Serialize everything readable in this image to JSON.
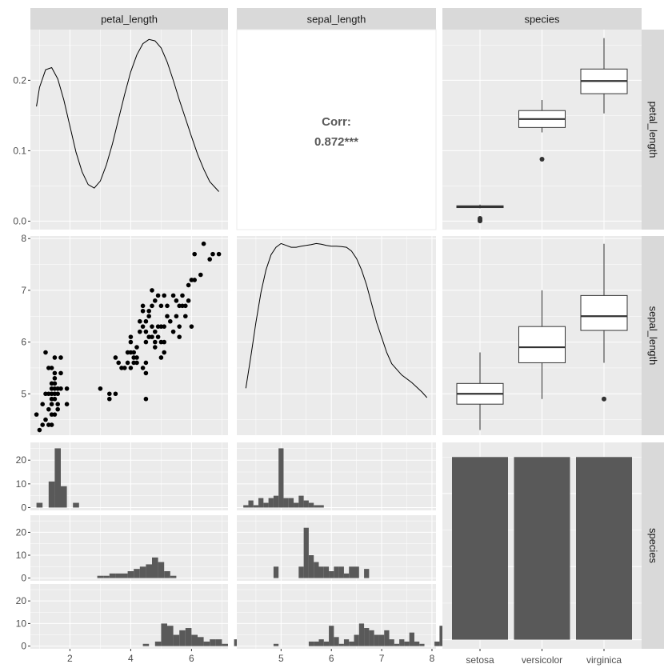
{
  "chart_data": {
    "type": "scatter",
    "variables": [
      "petal_length",
      "sepal_length",
      "species"
    ],
    "species_levels": [
      "setosa",
      "versicolor",
      "virginica"
    ],
    "colors": {
      "panel_bg": "#ebebeb",
      "grid": "#ffffff",
      "strip_bg": "#d9d9d9",
      "ink": "#000000",
      "bar": "#595959",
      "corr_text": "#595959"
    },
    "panels": {
      "petal_length_density": {
        "type": "line",
        "xlim": [
          0.7,
          7.2
        ],
        "ylim": [
          -0.012,
          0.272
        ],
        "yticks": [
          0.0,
          0.1,
          0.2
        ],
        "ytick_labels": [
          "0.0",
          "0.1",
          "0.2"
        ],
        "x": [
          0.9,
          1.0,
          1.2,
          1.4,
          1.6,
          1.8,
          2.0,
          2.2,
          2.4,
          2.6,
          2.8,
          3.0,
          3.2,
          3.4,
          3.6,
          3.8,
          4.0,
          4.2,
          4.4,
          4.6,
          4.8,
          5.0,
          5.2,
          5.4,
          5.6,
          5.8,
          6.0,
          6.2,
          6.4,
          6.6,
          6.9
        ],
        "y": [
          0.163,
          0.19,
          0.215,
          0.218,
          0.202,
          0.172,
          0.135,
          0.098,
          0.07,
          0.052,
          0.047,
          0.057,
          0.08,
          0.11,
          0.145,
          0.18,
          0.212,
          0.236,
          0.252,
          0.258,
          0.256,
          0.246,
          0.226,
          0.2,
          0.172,
          0.146,
          0.12,
          0.095,
          0.074,
          0.056,
          0.042
        ]
      },
      "correlation": {
        "label": "Corr:",
        "value": "0.872***"
      },
      "petal_length_by_species_box": {
        "type": "box",
        "ylim": [
          -0.012,
          0.272
        ],
        "boxes": [
          {
            "species": "setosa",
            "min": 0.0183,
            "q1": 0.0192,
            "median": 0.0205,
            "q3": 0.0218,
            "max": 0.0235,
            "outliers": [
              0.0016,
              0.0004,
              0.0039
            ]
          },
          {
            "species": "versicolor",
            "min": 0.126,
            "q1": 0.133,
            "median": 0.145,
            "q3": 0.157,
            "max": 0.172,
            "outliers": [
              0.088
            ]
          },
          {
            "species": "virginica",
            "min": 0.153,
            "q1": 0.181,
            "median": 0.199,
            "q3": 0.216,
            "max": 0.26,
            "outliers": []
          }
        ]
      },
      "scatter_petal_vs_sepal": {
        "type": "scatter",
        "xlim": [
          0.7,
          7.2
        ],
        "ylim": [
          4.2,
          8.05
        ],
        "yticks": [
          5,
          6,
          7,
          8
        ],
        "ytick_labels": [
          "5",
          "6",
          "7",
          "8"
        ],
        "points": [
          [
            0.9,
            4.6
          ],
          [
            1.0,
            4.3
          ],
          [
            1.1,
            4.4
          ],
          [
            1.1,
            4.8
          ],
          [
            1.2,
            4.5
          ],
          [
            1.2,
            5.0
          ],
          [
            1.2,
            5.8
          ],
          [
            1.3,
            4.4
          ],
          [
            1.3,
            4.7
          ],
          [
            1.3,
            5.0
          ],
          [
            1.3,
            5.5
          ],
          [
            1.4,
            4.4
          ],
          [
            1.4,
            4.6
          ],
          [
            1.4,
            4.8
          ],
          [
            1.4,
            4.9
          ],
          [
            1.4,
            5.0
          ],
          [
            1.4,
            5.1
          ],
          [
            1.4,
            5.2
          ],
          [
            1.4,
            5.5
          ],
          [
            1.5,
            4.6
          ],
          [
            1.5,
            4.9
          ],
          [
            1.5,
            5.0
          ],
          [
            1.5,
            5.1
          ],
          [
            1.5,
            5.2
          ],
          [
            1.5,
            5.3
          ],
          [
            1.5,
            5.4
          ],
          [
            1.5,
            5.7
          ],
          [
            1.6,
            4.7
          ],
          [
            1.6,
            4.8
          ],
          [
            1.6,
            5.0
          ],
          [
            1.6,
            5.1
          ],
          [
            1.7,
            5.1
          ],
          [
            1.7,
            5.4
          ],
          [
            1.7,
            5.7
          ],
          [
            1.9,
            4.8
          ],
          [
            1.9,
            5.1
          ],
          [
            3.0,
            5.1
          ],
          [
            3.3,
            4.9
          ],
          [
            3.3,
            5.0
          ],
          [
            3.5,
            5.0
          ],
          [
            3.5,
            5.7
          ],
          [
            3.6,
            5.6
          ],
          [
            3.7,
            5.5
          ],
          [
            3.8,
            5.5
          ],
          [
            3.9,
            5.6
          ],
          [
            3.9,
            5.8
          ],
          [
            4.0,
            5.5
          ],
          [
            4.0,
            5.8
          ],
          [
            4.0,
            6.0
          ],
          [
            4.0,
            6.1
          ],
          [
            4.1,
            5.6
          ],
          [
            4.1,
            5.7
          ],
          [
            4.1,
            5.8
          ],
          [
            4.2,
            5.6
          ],
          [
            4.2,
            5.7
          ],
          [
            4.2,
            5.9
          ],
          [
            4.3,
            6.2
          ],
          [
            4.3,
            6.4
          ],
          [
            4.4,
            5.5
          ],
          [
            4.4,
            6.3
          ],
          [
            4.4,
            6.6
          ],
          [
            4.4,
            6.7
          ],
          [
            4.5,
            4.9
          ],
          [
            4.5,
            5.4
          ],
          [
            4.5,
            5.6
          ],
          [
            4.5,
            6.0
          ],
          [
            4.5,
            6.2
          ],
          [
            4.5,
            6.4
          ],
          [
            4.6,
            6.1
          ],
          [
            4.6,
            6.5
          ],
          [
            4.6,
            6.6
          ],
          [
            4.7,
            6.1
          ],
          [
            4.7,
            6.3
          ],
          [
            4.7,
            6.7
          ],
          [
            4.7,
            7.0
          ],
          [
            4.8,
            5.9
          ],
          [
            4.8,
            6.0
          ],
          [
            4.8,
            6.2
          ],
          [
            4.8,
            6.8
          ],
          [
            4.9,
            6.1
          ],
          [
            4.9,
            6.3
          ],
          [
            4.9,
            6.9
          ],
          [
            5.0,
            5.7
          ],
          [
            5.0,
            6.0
          ],
          [
            5.0,
            6.3
          ],
          [
            5.0,
            6.7
          ],
          [
            5.1,
            5.8
          ],
          [
            5.1,
            6.0
          ],
          [
            5.1,
            6.3
          ],
          [
            5.1,
            6.9
          ],
          [
            5.2,
            6.5
          ],
          [
            5.2,
            6.7
          ],
          [
            5.3,
            6.4
          ],
          [
            5.4,
            6.2
          ],
          [
            5.4,
            6.9
          ],
          [
            5.5,
            6.5
          ],
          [
            5.5,
            6.8
          ],
          [
            5.6,
            6.1
          ],
          [
            5.6,
            6.3
          ],
          [
            5.6,
            6.7
          ],
          [
            5.7,
            6.7
          ],
          [
            5.7,
            6.9
          ],
          [
            5.8,
            6.5
          ],
          [
            5.8,
            6.7
          ],
          [
            5.9,
            6.8
          ],
          [
            5.9,
            7.1
          ],
          [
            6.0,
            6.3
          ],
          [
            6.0,
            7.2
          ],
          [
            6.1,
            7.2
          ],
          [
            6.1,
            7.7
          ],
          [
            6.3,
            7.3
          ],
          [
            6.4,
            7.9
          ],
          [
            6.6,
            7.6
          ],
          [
            6.7,
            7.7
          ],
          [
            6.9,
            7.7
          ]
        ]
      },
      "sepal_length_density": {
        "type": "line",
        "xlim": [
          4.12,
          8.08
        ],
        "x": [
          4.3,
          4.4,
          4.5,
          4.6,
          4.7,
          4.8,
          4.9,
          5.0,
          5.1,
          5.2,
          5.3,
          5.4,
          5.5,
          5.6,
          5.7,
          5.8,
          5.9,
          6.0,
          6.1,
          6.2,
          6.3,
          6.4,
          6.5,
          6.6,
          6.7,
          6.8,
          6.9,
          7.0,
          7.1,
          7.2,
          7.4,
          7.6,
          7.8,
          7.9
        ],
        "y": [
          0.125,
          0.21,
          0.3,
          0.38,
          0.44,
          0.48,
          0.5,
          0.51,
          0.505,
          0.5,
          0.5,
          0.503,
          0.505,
          0.507,
          0.51,
          0.508,
          0.505,
          0.503,
          0.503,
          0.502,
          0.5,
          0.49,
          0.47,
          0.44,
          0.4,
          0.35,
          0.3,
          0.26,
          0.22,
          0.19,
          0.16,
          0.14,
          0.115,
          0.1
        ],
        "ylim": [
          0.0,
          0.53
        ]
      },
      "sepal_length_by_species_box": {
        "type": "box",
        "ylim": [
          4.2,
          8.05
        ],
        "boxes": [
          {
            "species": "setosa",
            "min": 4.3,
            "q1": 4.8,
            "median": 5.0,
            "q3": 5.2,
            "max": 5.8,
            "outliers": []
          },
          {
            "species": "versicolor",
            "min": 4.9,
            "q1": 5.6,
            "median": 5.9,
            "q3": 6.3,
            "max": 7.0,
            "outliers": []
          },
          {
            "species": "virginica",
            "min": 5.6,
            "q1": 6.225,
            "median": 6.5,
            "q3": 6.9,
            "max": 7.9,
            "outliers": [
              4.9
            ]
          }
        ]
      },
      "petal_length_histograms": {
        "type": "bar",
        "xlim": [
          0.7,
          7.2
        ],
        "xticks": [
          2,
          4,
          6
        ],
        "xtick_labels": [
          "2",
          "4",
          "6"
        ],
        "yticks": [
          0,
          10,
          20
        ],
        "ytick_labels": [
          "0",
          "10",
          "20"
        ],
        "ylim": [
          -1.2,
          27.5
        ],
        "bin_start": 0.1,
        "bin_width": 0.2,
        "facets": [
          {
            "species": "setosa",
            "counts": [
              0,
              0,
              0,
              0,
              2,
              7,
              25,
              11,
              2,
              0
            ]
          },
          {
            "species": "versicolor",
            "first_bin_center": 3.0,
            "counts": [
              1,
              1,
              2,
              2,
              2,
              3,
              4,
              5,
              6,
              9,
              7,
              3,
              1
            ]
          },
          {
            "species": "virginica",
            "first_bin_center": 4.5,
            "counts": [
              1,
              0,
              2,
              10,
              9,
              5,
              7,
              8,
              5,
              4,
              2,
              3,
              3,
              1,
              0,
              3,
              1
            ]
          }
        ]
      },
      "sepal_length_histograms": {
        "type": "bar",
        "xlim": [
          4.12,
          8.08
        ],
        "xticks": [
          5,
          6,
          7,
          8
        ],
        "xtick_labels": [
          "5",
          "6",
          "7",
          "8"
        ],
        "ylim": [
          -1.2,
          27.5
        ],
        "bin_width": 0.1,
        "facets": [
          {
            "species": "setosa",
            "first_bin_center": 4.3,
            "counts": [
              1,
              3,
              1,
              4,
              2,
              4,
              5,
              25,
              4,
              4,
              2,
              5,
              3,
              2,
              1,
              1
            ]
          },
          {
            "species": "versicolor",
            "first_bin_center": 4.9,
            "counts": [
              5,
              0,
              0,
              0,
              0,
              5,
              22,
              10,
              7,
              5,
              5,
              3,
              5,
              5,
              2,
              5,
              5,
              0,
              4
            ]
          },
          {
            "species": "virginica",
            "first_bin_center": 4.9,
            "counts": [
              1,
              0,
              0,
              0,
              0,
              0,
              0,
              2,
              2,
              3,
              2,
              9,
              4,
              1,
              3,
              2,
              5,
              10,
              8,
              7,
              5,
              5,
              7,
              3,
              1,
              3,
              2,
              6,
              2,
              1,
              0,
              0,
              2,
              9,
              0,
              0,
              0,
              3,
              0,
              1,
              0,
              0,
              5,
              0
            ]
          }
        ]
      },
      "species_bar": {
        "type": "bar",
        "categories": [
          "setosa",
          "versicolor",
          "virginica"
        ],
        "values": [
          50,
          50,
          50
        ],
        "ylim": [
          -2.5,
          54
        ]
      }
    },
    "column_strips": [
      "petal_length",
      "sepal_length",
      "species"
    ],
    "row_strips": [
      "petal_length",
      "sepal_length",
      "species"
    ]
  }
}
